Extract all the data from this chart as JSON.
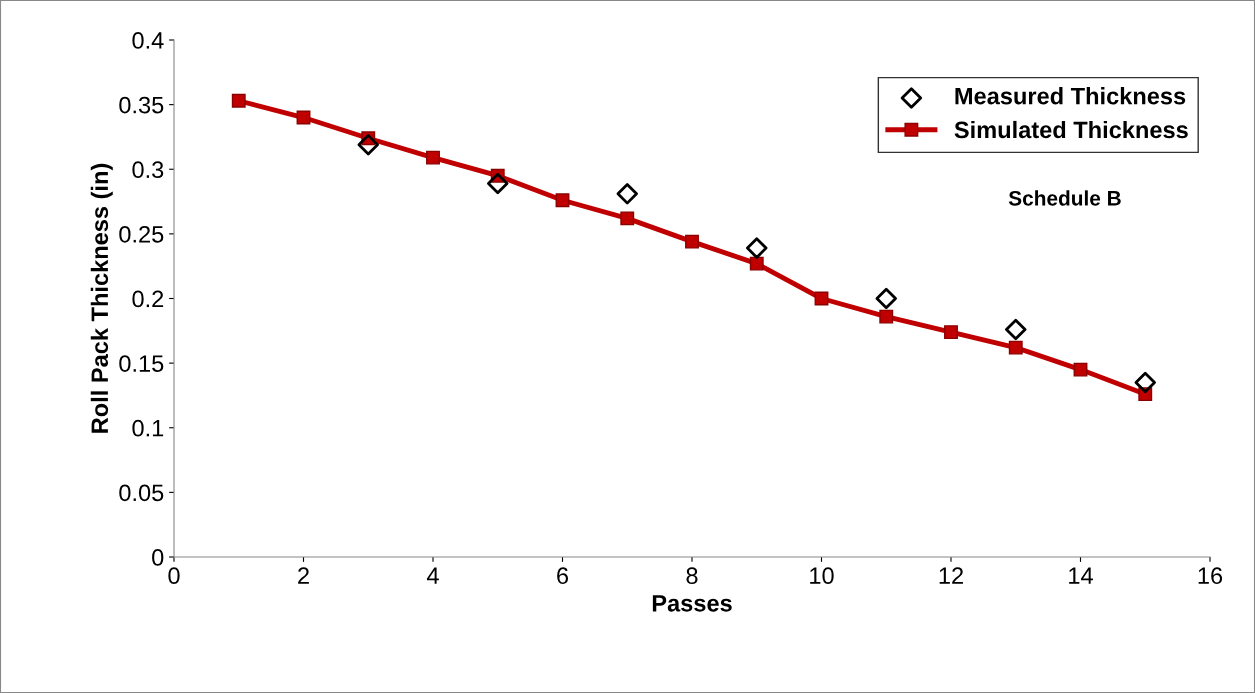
{
  "chart_data": {
    "type": "line",
    "xlabel": "Passes",
    "ylabel": "Roll Pack Thickness (in)",
    "annotations": [
      "Schedule B"
    ],
    "xlim": [
      0,
      16
    ],
    "xticks": [
      0,
      2,
      4,
      6,
      8,
      10,
      12,
      14,
      16
    ],
    "ylim": [
      0,
      0.4
    ],
    "yticks": [
      0,
      0.05,
      0.1,
      0.15,
      0.2,
      0.25,
      0.3,
      0.35,
      0.4
    ],
    "grid": false,
    "legend": "top right",
    "series": [
      {
        "name": "Measured Thickness",
        "type": "scatter",
        "marker": "diamond",
        "color": "#000000",
        "x": [
          3,
          5,
          7,
          9,
          11,
          13,
          15
        ],
        "values": [
          0.319,
          0.289,
          0.281,
          0.239,
          0.2,
          0.176,
          0.135
        ]
      },
      {
        "name": "Simulated Thickness",
        "marker": "square",
        "color": "#c00000",
        "x": [
          1,
          2,
          3,
          4,
          5,
          6,
          7,
          8,
          9,
          10,
          11,
          12,
          13,
          14,
          15
        ],
        "values": [
          0.353,
          0.34,
          0.324,
          0.309,
          0.295,
          0.276,
          0.262,
          0.244,
          0.227,
          0.2,
          0.186,
          0.174,
          0.162,
          0.145,
          0.126
        ]
      }
    ]
  }
}
